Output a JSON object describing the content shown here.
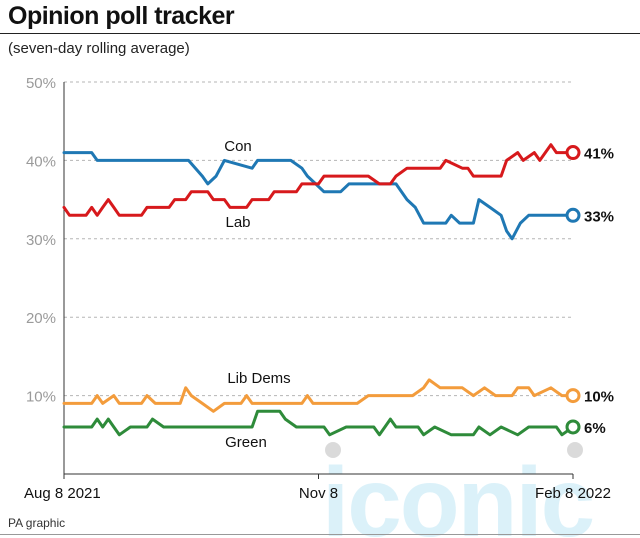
{
  "header": {
    "title": "Opinion poll tracker",
    "subtitle": "(seven-day rolling average)"
  },
  "footer": {
    "credit": "PA graphic"
  },
  "watermark": {
    "text": "iconic"
  },
  "chart_data": {
    "type": "line",
    "title": "Opinion poll tracker",
    "subtitle": "(seven-day rolling average)",
    "xlabel": "",
    "ylabel": "",
    "ylim": [
      0,
      50
    ],
    "yticks": [
      "50%",
      "40%",
      "30%",
      "20%",
      "10%"
    ],
    "ytick_values": [
      50,
      40,
      30,
      20,
      10
    ],
    "xticks": [
      "Aug 8 2021",
      "Nov 8",
      "Feb 8 2022"
    ],
    "xtick_positions": [
      0,
      92,
      184
    ],
    "xlim": [
      0,
      184
    ],
    "grid": "dashed horizontal",
    "series": [
      {
        "name": "Con",
        "color": "#1f78b4",
        "end_label": "33%",
        "points": [
          [
            0,
            41
          ],
          [
            10,
            41
          ],
          [
            12,
            40
          ],
          [
            45,
            40
          ],
          [
            50,
            38
          ],
          [
            52,
            37
          ],
          [
            55,
            38
          ],
          [
            58,
            40
          ],
          [
            68,
            39
          ],
          [
            70,
            40
          ],
          [
            82,
            40
          ],
          [
            86,
            39
          ],
          [
            88,
            38
          ],
          [
            91,
            37
          ],
          [
            94,
            36
          ],
          [
            100,
            36
          ],
          [
            103,
            37
          ],
          [
            120,
            37
          ],
          [
            124,
            35
          ],
          [
            127,
            34
          ],
          [
            130,
            32
          ],
          [
            138,
            32
          ],
          [
            140,
            33
          ],
          [
            143,
            32
          ],
          [
            148,
            32
          ],
          [
            150,
            35
          ],
          [
            154,
            34
          ],
          [
            158,
            33
          ],
          [
            160,
            31
          ],
          [
            162,
            30
          ],
          [
            165,
            32
          ],
          [
            168,
            33
          ],
          [
            184,
            33
          ]
        ]
      },
      {
        "name": "Lab",
        "color": "#d7191c",
        "end_label": "41%",
        "points": [
          [
            0,
            34
          ],
          [
            2,
            33
          ],
          [
            8,
            33
          ],
          [
            10,
            34
          ],
          [
            12,
            33
          ],
          [
            14,
            34
          ],
          [
            16,
            35
          ],
          [
            18,
            34
          ],
          [
            20,
            33
          ],
          [
            28,
            33
          ],
          [
            30,
            34
          ],
          [
            38,
            34
          ],
          [
            40,
            35
          ],
          [
            44,
            35
          ],
          [
            46,
            36
          ],
          [
            52,
            36
          ],
          [
            54,
            35
          ],
          [
            58,
            35
          ],
          [
            60,
            34
          ],
          [
            66,
            34
          ],
          [
            68,
            35
          ],
          [
            74,
            35
          ],
          [
            76,
            36
          ],
          [
            84,
            36
          ],
          [
            86,
            37
          ],
          [
            92,
            37
          ],
          [
            94,
            38
          ],
          [
            110,
            38
          ],
          [
            114,
            37
          ],
          [
            118,
            37
          ],
          [
            120,
            38
          ],
          [
            124,
            39
          ],
          [
            136,
            39
          ],
          [
            138,
            40
          ],
          [
            144,
            39
          ],
          [
            146,
            39
          ],
          [
            148,
            38
          ],
          [
            158,
            38
          ],
          [
            160,
            40
          ],
          [
            164,
            41
          ],
          [
            166,
            40
          ],
          [
            170,
            41
          ],
          [
            172,
            40
          ],
          [
            176,
            42
          ],
          [
            178,
            41
          ],
          [
            184,
            41
          ]
        ]
      },
      {
        "name": "Lib Dems",
        "color": "#f39c3c",
        "end_label": "10%",
        "points": [
          [
            0,
            9
          ],
          [
            10,
            9
          ],
          [
            12,
            10
          ],
          [
            14,
            9
          ],
          [
            18,
            10
          ],
          [
            20,
            9
          ],
          [
            28,
            9
          ],
          [
            30,
            10
          ],
          [
            33,
            9
          ],
          [
            42,
            9
          ],
          [
            44,
            11
          ],
          [
            46,
            10
          ],
          [
            50,
            9
          ],
          [
            54,
            8
          ],
          [
            58,
            9
          ],
          [
            64,
            9
          ],
          [
            66,
            10
          ],
          [
            68,
            9
          ],
          [
            86,
            9
          ],
          [
            88,
            10
          ],
          [
            90,
            9
          ],
          [
            106,
            9
          ],
          [
            110,
            10
          ],
          [
            126,
            10
          ],
          [
            130,
            11
          ],
          [
            132,
            12
          ],
          [
            136,
            11
          ],
          [
            144,
            11
          ],
          [
            148,
            10
          ],
          [
            152,
            11
          ],
          [
            156,
            10
          ],
          [
            162,
            10
          ],
          [
            164,
            11
          ],
          [
            168,
            11
          ],
          [
            170,
            10
          ],
          [
            176,
            11
          ],
          [
            180,
            10
          ],
          [
            184,
            10
          ]
        ]
      },
      {
        "name": "Green",
        "color": "#2e8b3a",
        "end_label": "6%",
        "points": [
          [
            0,
            6
          ],
          [
            10,
            6
          ],
          [
            12,
            7
          ],
          [
            14,
            6
          ],
          [
            16,
            7
          ],
          [
            18,
            6
          ],
          [
            20,
            5
          ],
          [
            24,
            6
          ],
          [
            30,
            6
          ],
          [
            32,
            7
          ],
          [
            36,
            6
          ],
          [
            68,
            6
          ],
          [
            70,
            8
          ],
          [
            78,
            8
          ],
          [
            80,
            7
          ],
          [
            84,
            6
          ],
          [
            94,
            6
          ],
          [
            96,
            5
          ],
          [
            102,
            6
          ],
          [
            112,
            6
          ],
          [
            114,
            5
          ],
          [
            116,
            6
          ],
          [
            118,
            7
          ],
          [
            120,
            6
          ],
          [
            128,
            6
          ],
          [
            130,
            5
          ],
          [
            134,
            6
          ],
          [
            140,
            5
          ],
          [
            148,
            5
          ],
          [
            150,
            6
          ],
          [
            154,
            5
          ],
          [
            158,
            6
          ],
          [
            164,
            5
          ],
          [
            168,
            6
          ],
          [
            178,
            6
          ],
          [
            180,
            5
          ],
          [
            184,
            6
          ]
        ]
      }
    ]
  }
}
